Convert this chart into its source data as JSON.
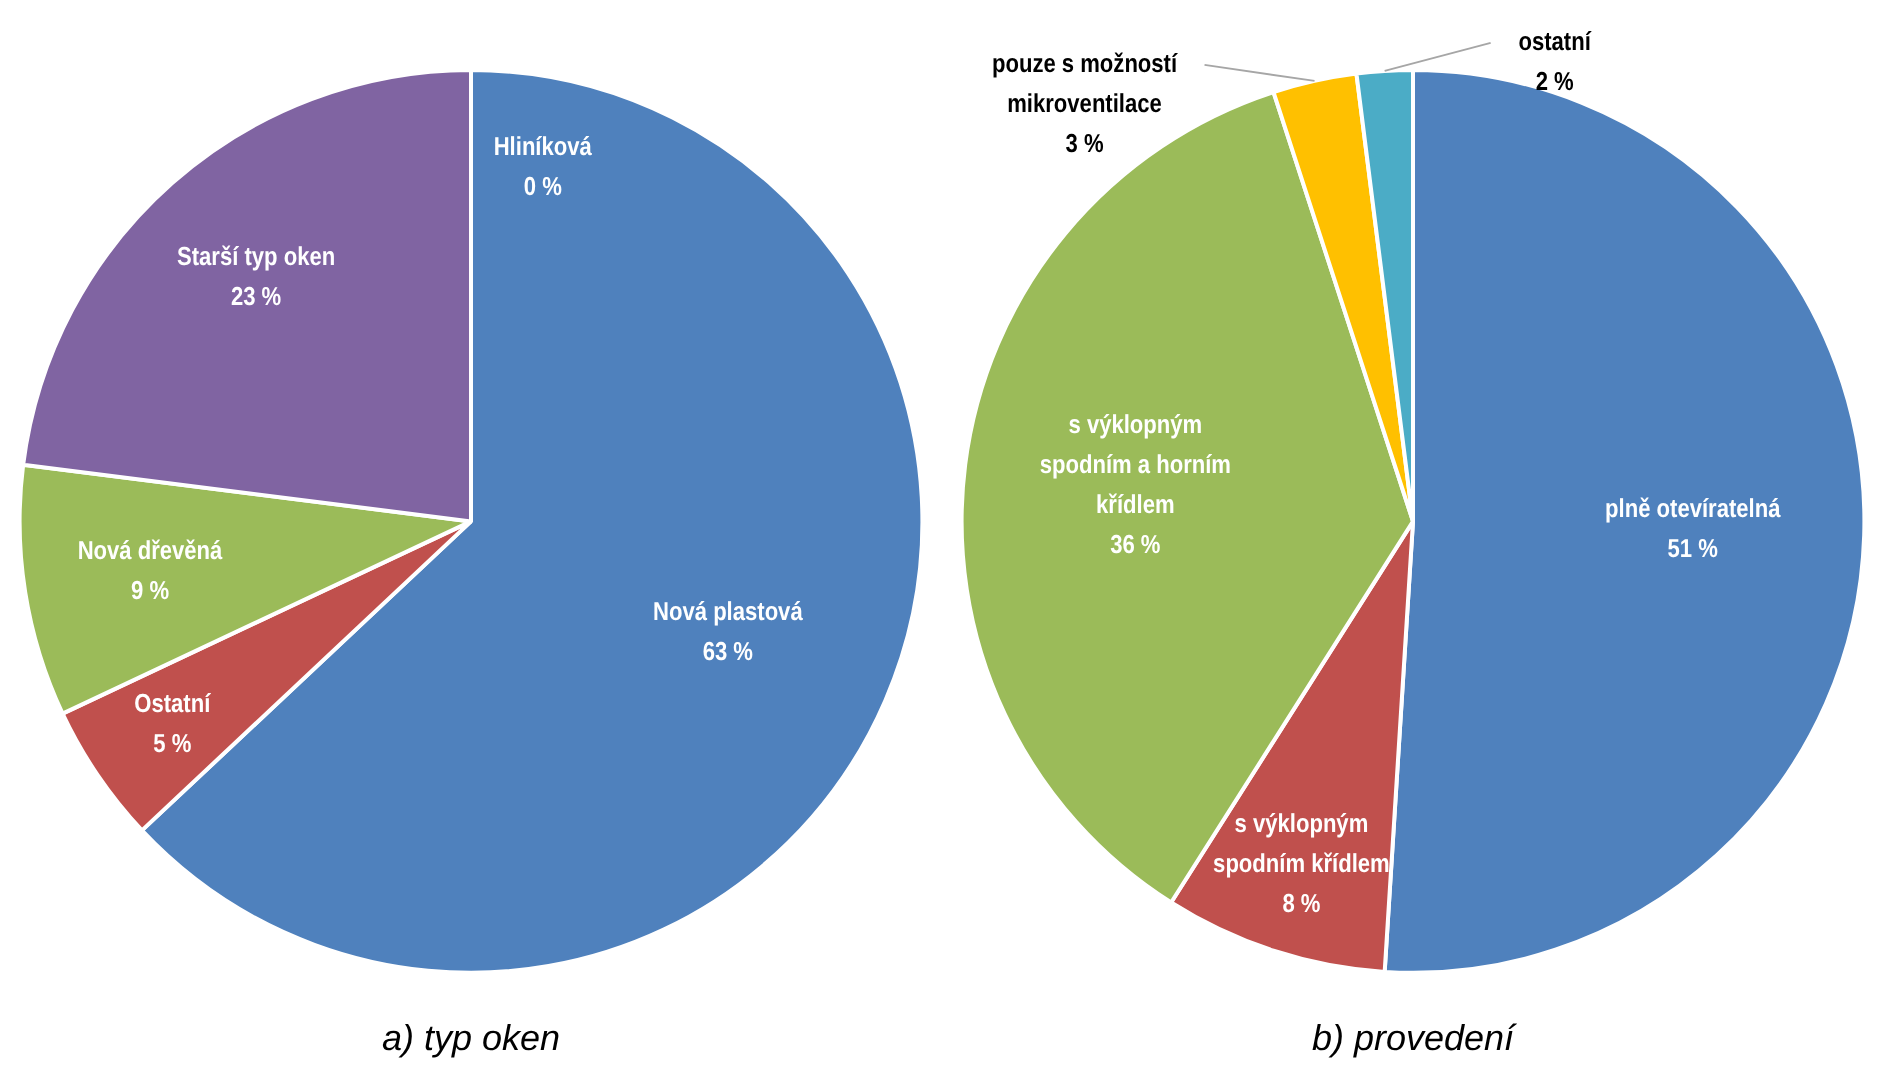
{
  "chart_data": [
    {
      "type": "pie",
      "title": "a) typ oken",
      "categories": [
        "Nová plastová",
        "Ostatní",
        "Nová dřevěná",
        "Starší typ oken",
        "Hliníková"
      ],
      "values": [
        63,
        5,
        9,
        23,
        0
      ],
      "value_labels": [
        "63 %",
        "5 %",
        "9 %",
        "23 %",
        "0 %"
      ],
      "colors": [
        "#4f81bd",
        "#c0504d",
        "#9bbb59",
        "#8064a2",
        "#ffc000"
      ],
      "legend": false
    },
    {
      "type": "pie",
      "title": "b) provedení",
      "categories": [
        "plně otevíratelná",
        "s výklopným spodním křídlem",
        "s výklopným spodním a horním křídlem",
        "pouze s možností mikroventilace",
        "ostatní"
      ],
      "values": [
        51,
        8,
        36,
        3,
        2
      ],
      "value_labels": [
        "51 %",
        "8 %",
        "36 %",
        "3 %",
        "2 %"
      ],
      "colors": [
        "#4f81bd",
        "#c0504d",
        "#9bbb59",
        "#ffc000",
        "#4bacc6"
      ],
      "legend": false
    }
  ]
}
